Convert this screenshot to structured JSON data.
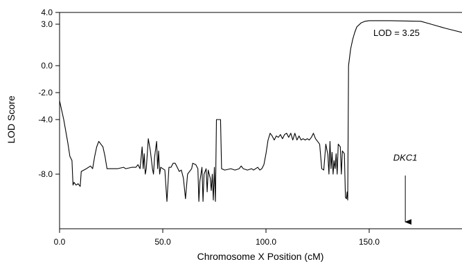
{
  "chart_data": {
    "type": "line",
    "title": "",
    "xlabel": "Chromosome X Position (cM)",
    "ylabel": "LOD Score",
    "xlim": [
      0,
      195
    ],
    "ylim": [
      -12,
      4
    ],
    "x_ticks": [
      {
        "value": 0,
        "label": "0.0"
      },
      {
        "value": 50,
        "label": "50.0"
      },
      {
        "value": 100,
        "label": "100.0"
      },
      {
        "value": 150,
        "label": "150.0"
      }
    ],
    "y_ticks": [
      {
        "value": 4,
        "label": "4.0"
      },
      {
        "value": 3,
        "label": "3.0"
      },
      {
        "value": 0,
        "label": "0.0"
      },
      {
        "value": -2,
        "label": "-2.0"
      },
      {
        "value": -4,
        "label": "-4.0"
      },
      {
        "value": -8,
        "label": "-8.0"
      }
    ],
    "grid": false,
    "series": [
      {
        "color": "#000000",
        "points": [
          [
            0,
            -2.6
          ],
          [
            2,
            -4.0
          ],
          [
            4,
            -5.7
          ],
          [
            5,
            -6.7
          ],
          [
            6,
            -7.0
          ],
          [
            6.5,
            -8.8
          ],
          [
            7,
            -8.6
          ],
          [
            8,
            -8.8
          ],
          [
            9,
            -8.7
          ],
          [
            10,
            -8.9
          ],
          [
            10.5,
            -7.8
          ],
          [
            13,
            -7.6
          ],
          [
            15,
            -7.4
          ],
          [
            16,
            -7.6
          ],
          [
            17,
            -6.7
          ],
          [
            18,
            -6.0
          ],
          [
            19,
            -5.6
          ],
          [
            20,
            -5.8
          ],
          [
            21,
            -6.0
          ],
          [
            22,
            -6.7
          ],
          [
            23,
            -7.6
          ],
          [
            28,
            -7.6
          ],
          [
            31,
            -7.5
          ],
          [
            32,
            -7.6
          ],
          [
            35,
            -7.5
          ],
          [
            37,
            -7.5
          ],
          [
            38,
            -7.3
          ],
          [
            39,
            -7.6
          ],
          [
            40,
            -6.0
          ],
          [
            40.5,
            -7.6
          ],
          [
            41,
            -6.5
          ],
          [
            41.5,
            -8.0
          ],
          [
            42,
            -7.6
          ],
          [
            43,
            -5.4
          ],
          [
            44,
            -6.3
          ],
          [
            45,
            -7.6
          ],
          [
            45.5,
            -8.0
          ],
          [
            46,
            -6.8
          ],
          [
            47,
            -5.6
          ],
          [
            47.5,
            -7.6
          ],
          [
            48,
            -6.3
          ],
          [
            48.5,
            -8.0
          ],
          [
            49,
            -7.5
          ],
          [
            50,
            -7.6
          ],
          [
            51,
            -7.7
          ],
          [
            52,
            -10.0
          ],
          [
            53,
            -7.5
          ],
          [
            54,
            -7.5
          ],
          [
            55,
            -7.2
          ],
          [
            56,
            -7.2
          ],
          [
            57,
            -7.5
          ],
          [
            58,
            -7.8
          ],
          [
            59,
            -7.7
          ],
          [
            60,
            -8.3
          ],
          [
            61,
            -9.8
          ],
          [
            62,
            -8.0
          ],
          [
            63,
            -7.8
          ],
          [
            64,
            -7.6
          ],
          [
            64.5,
            -7.2
          ],
          [
            66,
            -7.3
          ],
          [
            67,
            -7.6
          ],
          [
            67.5,
            -10.0
          ],
          [
            68,
            -8.5
          ],
          [
            69,
            -7.5
          ],
          [
            69.5,
            -10.0
          ],
          [
            70,
            -8.0
          ],
          [
            71,
            -7.6
          ],
          [
            71.5,
            -9.3
          ],
          [
            72,
            -7.7
          ],
          [
            73,
            -8.3
          ],
          [
            73.5,
            -9.2
          ],
          [
            74,
            -8.0
          ],
          [
            74.5,
            -9.9
          ],
          [
            75,
            -7.5
          ],
          [
            75.5,
            -10.0
          ],
          [
            76,
            -4.0
          ],
          [
            78,
            -4.0
          ],
          [
            78.5,
            -7.6
          ],
          [
            80,
            -7.7
          ],
          [
            83,
            -7.6
          ],
          [
            85,
            -7.7
          ],
          [
            87,
            -7.6
          ],
          [
            88,
            -7.4
          ],
          [
            89,
            -7.6
          ],
          [
            91,
            -7.7
          ],
          [
            93,
            -7.6
          ],
          [
            94,
            -7.7
          ],
          [
            96,
            -7.5
          ],
          [
            97,
            -7.7
          ],
          [
            98,
            -7.6
          ],
          [
            99,
            -7.3
          ],
          [
            100,
            -6.5
          ],
          [
            101,
            -5.5
          ],
          [
            102,
            -5.0
          ],
          [
            103,
            -5.2
          ],
          [
            104,
            -5.5
          ],
          [
            105,
            -5.2
          ],
          [
            106,
            -5.3
          ],
          [
            107,
            -5.1
          ],
          [
            108,
            -5.4
          ],
          [
            109,
            -5.1
          ],
          [
            110,
            -5.0
          ],
          [
            111,
            -5.3
          ],
          [
            112,
            -5.0
          ],
          [
            113,
            -5.5
          ],
          [
            114,
            -5.0
          ],
          [
            115,
            -5.5
          ],
          [
            116,
            -5.2
          ],
          [
            117,
            -5.5
          ],
          [
            118,
            -5.4
          ],
          [
            119,
            -5.5
          ],
          [
            120,
            -5.4
          ],
          [
            121,
            -5.5
          ],
          [
            122,
            -5.3
          ],
          [
            123,
            -5.0
          ],
          [
            124,
            -5.4
          ],
          [
            125,
            -5.6
          ],
          [
            126,
            -5.8
          ],
          [
            127,
            -7.6
          ],
          [
            128,
            -7.7
          ],
          [
            129,
            -5.8
          ],
          [
            130,
            -6.6
          ],
          [
            130.5,
            -8.0
          ],
          [
            131,
            -5.6
          ],
          [
            131.5,
            -7.6
          ],
          [
            132,
            -6.4
          ],
          [
            132.5,
            -8.0
          ],
          [
            133,
            -7.0
          ],
          [
            133.5,
            -7.6
          ],
          [
            134,
            -6.5
          ],
          [
            134.5,
            -8.0
          ],
          [
            135,
            -5.8
          ],
          [
            136,
            -6.0
          ],
          [
            136.5,
            -8.0
          ],
          [
            137,
            -6.3
          ],
          [
            138,
            -6.5
          ],
          [
            138.5,
            -9.7
          ],
          [
            139,
            -9.8
          ],
          [
            139.3,
            -9.3
          ],
          [
            139.6,
            -9.9
          ],
          [
            140,
            0.0
          ],
          [
            141,
            1.2
          ],
          [
            142,
            1.9
          ],
          [
            143,
            2.4
          ],
          [
            144,
            2.8
          ],
          [
            146,
            3.1
          ],
          [
            148,
            3.25
          ],
          [
            150,
            3.3
          ],
          [
            160,
            3.3
          ],
          [
            175,
            3.25
          ],
          [
            180,
            3.0
          ],
          [
            187,
            2.7
          ],
          [
            195,
            2.4
          ]
        ]
      }
    ],
    "annotations": [
      {
        "text": "LOD = 3.25",
        "x": 152,
        "y": 2.15,
        "style": "normal"
      },
      {
        "text": "DKC1",
        "x": 167.5,
        "y": -7.0,
        "style": "italic"
      }
    ],
    "arrow": {
      "x": 167.5,
      "y_from": -8.1,
      "y_to": -11.5
    }
  }
}
